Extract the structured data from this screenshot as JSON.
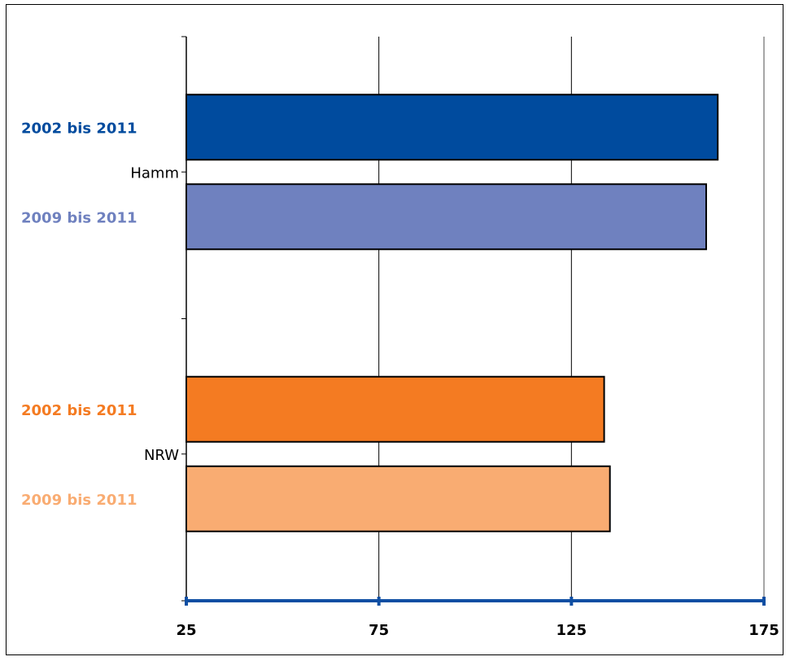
{
  "chart_data": {
    "type": "bar",
    "orientation": "horizontal",
    "title": "",
    "xlabel": "",
    "ylabel": "",
    "xlim": [
      25,
      175
    ],
    "x_ticks": [
      25,
      75,
      125,
      175
    ],
    "grid": true,
    "groups": [
      {
        "category": "Hamm",
        "bars": [
          {
            "series": "2002 bis 2011",
            "value": 163,
            "color": "#004b9e"
          },
          {
            "series": "2009 bis 2011",
            "value": 160,
            "color": "#6f81bf"
          }
        ]
      },
      {
        "category": "NRW",
        "bars": [
          {
            "series": "2002 bis 2011",
            "value": 133.5,
            "color": "#f47b22"
          },
          {
            "series": "2009 bis 2011",
            "value": 135,
            "color": "#f9ac72"
          }
        ]
      }
    ],
    "axis_color": "#0f4fa3"
  }
}
